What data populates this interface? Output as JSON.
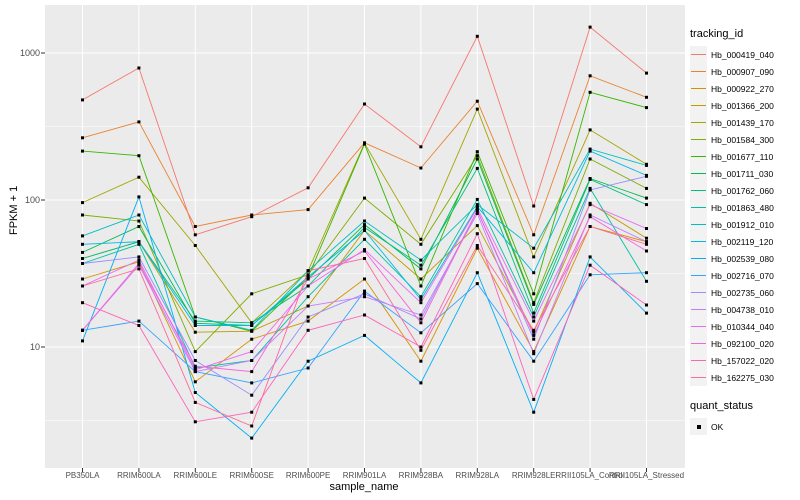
{
  "chart_data": {
    "type": "line",
    "title": "",
    "xlabel": "sample_name",
    "ylabel": "FPKM + 1",
    "y_scale": "log10",
    "y_ticks": [
      10,
      100,
      1000
    ],
    "y_minor_ticks": [
      3.162,
      31.62,
      316.2
    ],
    "ylim": [
      1.6,
      2000
    ],
    "grid": "white major+minor gridlines on gray panel, vertical gridline per category",
    "legend_position": "right",
    "point_shape": "small black square",
    "categories": [
      "PB350LA",
      "RRIM600LA",
      "RRIM600LE",
      "RRIM600SE",
      "RRIM600PE",
      "RRIM901LA",
      "RRIM928BA",
      "RRIM928LA",
      "RRIM928LE",
      "RRII105LA_Control",
      "RRII105LA_Stressed"
    ],
    "series": [
      {
        "name": "Hb_000419_040",
        "color": "#F8766D",
        "values": [
          480,
          790,
          58,
          77,
          121,
          450,
          230,
          1300,
          91,
          1500,
          730
        ]
      },
      {
        "name": "Hb_000907_090",
        "color": "#EA8331",
        "values": [
          265,
          340,
          66,
          79,
          86,
          245,
          165,
          470,
          58,
          700,
          500
        ]
      },
      {
        "name": "Hb_000922_270",
        "color": "#D89000",
        "values": [
          29,
          38,
          5.8,
          11.3,
          15,
          29,
          8,
          47,
          9.3,
          66,
          52
        ]
      },
      {
        "name": "Hb_001366_200",
        "color": "#C09B00",
        "values": [
          40,
          52,
          12.6,
          12.8,
          19,
          62,
          29,
          67,
          12.6,
          95,
          55
        ]
      },
      {
        "name": "Hb_001439_170",
        "color": "#A3A500",
        "values": [
          96,
          143,
          49,
          14.6,
          33,
          243,
          54,
          415,
          41,
          300,
          175
        ]
      },
      {
        "name": "Hb_001584_300",
        "color": "#7CAE00",
        "values": [
          79,
          72,
          9.3,
          23,
          31,
          103,
          50,
          200,
          20,
          190,
          120
        ]
      },
      {
        "name": "Hb_001677_110",
        "color": "#39B600",
        "values": [
          215,
          200,
          16,
          12.8,
          30,
          240,
          26,
          213,
          23,
          540,
          425
        ]
      },
      {
        "name": "Hb_001711_030",
        "color": "#00BB4E",
        "values": [
          44,
          66,
          14.5,
          14,
          29,
          68,
          34,
          190,
          19.5,
          140,
          103
        ]
      },
      {
        "name": "Hb_001762_060",
        "color": "#00BF7D",
        "values": [
          40,
          52,
          15,
          14.6,
          26,
          65,
          36,
          164,
          17,
          138,
          93
        ]
      },
      {
        "name": "Hb_001863_480",
        "color": "#00C1A3",
        "values": [
          37,
          50,
          7.2,
          8.1,
          22,
          54,
          22,
          101,
          16,
          120,
          28
        ]
      },
      {
        "name": "Hb_001912_010",
        "color": "#00BFC4",
        "values": [
          57,
          79,
          16,
          13,
          33,
          72,
          39,
          93,
          47,
          222,
          172
        ]
      },
      {
        "name": "Hb_002119_120",
        "color": "#00BAE0",
        "values": [
          50,
          52,
          14,
          14,
          30,
          62,
          21,
          90,
          32,
          215,
          147
        ]
      },
      {
        "name": "Hb_002539_080",
        "color": "#00B0F6",
        "values": [
          11,
          105,
          4.9,
          2.4,
          8,
          12,
          5.7,
          32,
          3.6,
          41,
          17
        ]
      },
      {
        "name": "Hb_002716_070",
        "color": "#35A2FF",
        "values": [
          13,
          15,
          6.8,
          5.7,
          7.2,
          24,
          12.5,
          27,
          8,
          31,
          32
        ]
      },
      {
        "name": "Hb_002735_060",
        "color": "#9590FF",
        "values": [
          37,
          41,
          8.1,
          4.7,
          16,
          23,
          15.5,
          85,
          11.3,
          117,
          145
        ]
      },
      {
        "name": "Hb_004738_010",
        "color": "#C77CFF",
        "values": [
          13,
          36,
          6.8,
          8.1,
          19,
          22,
          16.5,
          81,
          9,
          79,
          52
        ]
      },
      {
        "name": "Hb_010344_040",
        "color": "#E76BF3",
        "values": [
          26,
          39,
          7,
          9.3,
          26,
          46,
          20,
          88,
          15,
          93,
          64
        ]
      },
      {
        "name": "Hb_092100_020",
        "color": "#FA62DB",
        "values": [
          13,
          37,
          7.4,
          6.8,
          29,
          45,
          14.6,
          85,
          12,
          77,
          45
        ]
      },
      {
        "name": "Hb_157022_020",
        "color": "#FF62BC",
        "values": [
          20,
          14,
          3.1,
          3.6,
          13,
          16.5,
          10,
          59,
          4.4,
          36,
          19.3
        ]
      },
      {
        "name": "Hb_162275_030",
        "color": "#FF6A98",
        "values": [
          26,
          34,
          4.2,
          2.9,
          33,
          40,
          9.5,
          49,
          13,
          66,
          50
        ]
      }
    ],
    "color_legend_title": "tracking_id",
    "shape_legend_title": "quant_status",
    "shape_legend_items": [
      {
        "label": "OK"
      }
    ]
  },
  "theme": {
    "panel_background": "#EBEBEB",
    "gridline_color": "#FFFFFF",
    "tick_text_color": "#4D4D4D",
    "tick_mark_color": "#333333",
    "point_color": "#000000",
    "legend_key_background": "#F2F2F2"
  }
}
